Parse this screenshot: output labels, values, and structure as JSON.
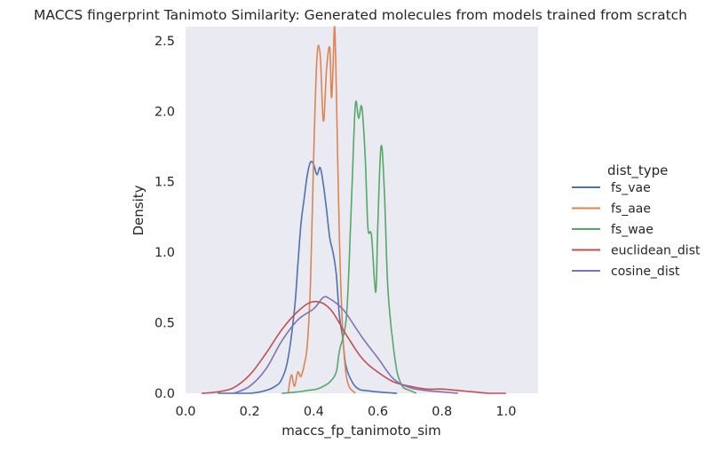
{
  "chart_data": {
    "type": "line",
    "title": "MACCS fingerprint Tanimoto Similarity: Generated molecules from models trained from scratch",
    "xlabel": "maccs_fp_tanimoto_sim",
    "ylabel": "Density",
    "xlim": [
      0.0,
      1.1
    ],
    "ylim": [
      0.0,
      2.6
    ],
    "xticks": [
      "0.0",
      "0.2",
      "0.4",
      "0.6",
      "0.8",
      "1.0"
    ],
    "xtick_values": [
      0.0,
      0.2,
      0.4,
      0.6,
      0.8,
      1.0
    ],
    "yticks": [
      "0.0",
      "0.5",
      "1.0",
      "1.5",
      "2.0",
      "2.5"
    ],
    "ytick_values": [
      0.0,
      0.5,
      1.0,
      1.5,
      2.0,
      2.5
    ],
    "grid": false,
    "background": "#eaeaf2",
    "legend": {
      "title": "dist_type",
      "position": "right-outside"
    },
    "series": [
      {
        "name": "fs_vae",
        "color": "#4c72b0",
        "x": [
          0.1,
          0.2,
          0.25,
          0.28,
          0.3,
          0.32,
          0.34,
          0.35,
          0.36,
          0.37,
          0.38,
          0.39,
          0.4,
          0.41,
          0.42,
          0.43,
          0.44,
          0.45,
          0.46,
          0.47,
          0.48,
          0.49,
          0.5,
          0.52,
          0.54,
          0.56,
          0.6,
          0.66
        ],
        "y": [
          0.0,
          0.0,
          0.02,
          0.05,
          0.1,
          0.25,
          0.6,
          0.9,
          1.2,
          1.38,
          1.55,
          1.64,
          1.62,
          1.55,
          1.6,
          1.48,
          1.3,
          1.1,
          1.0,
          0.85,
          0.55,
          0.4,
          0.2,
          0.08,
          0.03,
          0.02,
          0.01,
          0.0
        ]
      },
      {
        "name": "fs_aae",
        "color": "#dd8452",
        "x": [
          0.32,
          0.33,
          0.34,
          0.35,
          0.36,
          0.37,
          0.38,
          0.39,
          0.4,
          0.41,
          0.42,
          0.43,
          0.44,
          0.45,
          0.455,
          0.46,
          0.465,
          0.47,
          0.48,
          0.49,
          0.5,
          0.51,
          0.52,
          0.53
        ],
        "y": [
          0.0,
          0.13,
          0.05,
          0.15,
          0.12,
          0.2,
          0.35,
          0.8,
          1.7,
          2.38,
          2.4,
          1.93,
          2.3,
          2.45,
          2.1,
          2.3,
          2.6,
          2.2,
          1.1,
          0.45,
          0.15,
          0.05,
          0.02,
          0.0
        ]
      },
      {
        "name": "fs_wae",
        "color": "#55a868",
        "x": [
          0.3,
          0.35,
          0.38,
          0.41,
          0.43,
          0.45,
          0.47,
          0.48,
          0.5,
          0.51,
          0.52,
          0.53,
          0.54,
          0.55,
          0.56,
          0.565,
          0.57,
          0.58,
          0.59,
          0.595,
          0.6,
          0.61,
          0.62,
          0.63,
          0.64,
          0.645,
          0.65,
          0.66,
          0.67,
          0.68,
          0.7,
          0.72
        ],
        "y": [
          0.0,
          0.01,
          0.02,
          0.03,
          0.05,
          0.08,
          0.15,
          0.3,
          0.5,
          0.9,
          1.5,
          2.05,
          1.95,
          2.03,
          1.7,
          1.4,
          1.15,
          1.12,
          0.78,
          0.76,
          1.2,
          1.75,
          1.45,
          0.8,
          0.5,
          0.4,
          0.3,
          0.15,
          0.08,
          0.04,
          0.02,
          0.0
        ]
      },
      {
        "name": "euclidean_dist",
        "color": "#c44e52",
        "x": [
          0.05,
          0.1,
          0.15,
          0.2,
          0.25,
          0.3,
          0.35,
          0.4,
          0.45,
          0.5,
          0.55,
          0.6,
          0.65,
          0.7,
          0.75,
          0.8,
          0.85,
          0.9,
          0.95,
          1.0
        ],
        "y": [
          0.0,
          0.01,
          0.04,
          0.13,
          0.28,
          0.45,
          0.58,
          0.65,
          0.6,
          0.42,
          0.25,
          0.15,
          0.08,
          0.05,
          0.03,
          0.03,
          0.02,
          0.01,
          0.0,
          0.0
        ]
      },
      {
        "name": "cosine_dist",
        "color": "#8172b3",
        "x": [
          0.15,
          0.2,
          0.25,
          0.3,
          0.35,
          0.4,
          0.43,
          0.45,
          0.48,
          0.5,
          0.55,
          0.6,
          0.65,
          0.7,
          0.75,
          0.8,
          0.85
        ],
        "y": [
          0.0,
          0.05,
          0.17,
          0.37,
          0.52,
          0.6,
          0.68,
          0.67,
          0.62,
          0.57,
          0.4,
          0.25,
          0.1,
          0.04,
          0.02,
          0.01,
          0.0
        ]
      }
    ]
  }
}
